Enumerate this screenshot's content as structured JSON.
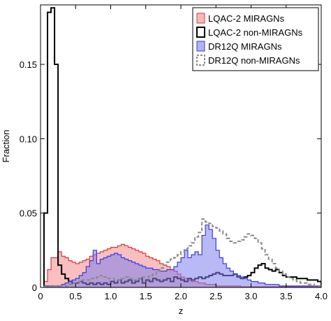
{
  "chart_data": {
    "type": "histogram-step",
    "title": "",
    "xlabel": "z",
    "ylabel": "Fraction",
    "xlim": [
      0,
      4.0
    ],
    "ylim": [
      0,
      0.19
    ],
    "xticks": [
      0,
      0.5,
      1.0,
      1.5,
      2.0,
      2.5,
      3.0,
      3.5,
      4.0
    ],
    "xtick_labels": [
      "0",
      "0.5",
      "1.0",
      "1.5",
      "2.0",
      "2.5",
      "3.0",
      "3.5",
      "4.0"
    ],
    "yticks": [
      0,
      0.05,
      0.1,
      0.15
    ],
    "ytick_labels": [
      "0",
      "0.05",
      "0.10",
      "0.15"
    ],
    "grid": false,
    "legend_position": "top-right",
    "bin_edges_start": 0.05,
    "bin_width": 0.05,
    "series": [
      {
        "name": "LQAC-2 MIRAGNs",
        "style": "filled",
        "fill_color": "#f08a8a",
        "edge_color": "#d83a3a",
        "values": [
          0.004,
          0.012,
          0.02,
          0.02,
          0.024,
          0.021,
          0.02,
          0.018,
          0.017,
          0.016,
          0.017,
          0.018,
          0.019,
          0.021,
          0.022,
          0.023,
          0.024,
          0.025,
          0.026,
          0.027,
          0.027,
          0.028,
          0.029,
          0.028,
          0.027,
          0.026,
          0.025,
          0.024,
          0.023,
          0.021,
          0.02,
          0.019,
          0.018,
          0.016,
          0.015,
          0.014,
          0.012,
          0.011,
          0.009,
          0.007,
          0.006,
          0.005,
          0.004,
          0.004,
          0.003,
          0.003,
          0.002,
          0.002,
          0.002,
          0.001,
          0.001,
          0.001,
          0.001,
          0.001,
          0.001,
          0.001,
          0.0005,
          0.0005,
          0.0005,
          0.0005,
          0.0005,
          0.0005,
          0.0005,
          0.0005,
          0.0005,
          0.0005,
          0.0005,
          0.0005,
          0.0005,
          0.0005,
          0.0005,
          0.0005,
          0.0005,
          0.0005,
          0.0005,
          0.0005,
          0.0005,
          0.0005,
          0.0005
        ]
      },
      {
        "name": "LQAC-2 non-MIRAGNs",
        "style": "step",
        "edge_color": "#000000",
        "dashed": false,
        "values": [
          0.05,
          0.185,
          0.188,
          0.15,
          0.015,
          0.009,
          0.006,
          0.004,
          0.003,
          0.003,
          0.004,
          0.003,
          0.002,
          0.003,
          0.002,
          0.003,
          0.002,
          0.003,
          0.002,
          0.004,
          0.003,
          0.005,
          0.003,
          0.004,
          0.005,
          0.003,
          0.004,
          0.006,
          0.003,
          0.005,
          0.004,
          0.006,
          0.005,
          0.004,
          0.005,
          0.006,
          0.004,
          0.007,
          0.006,
          0.005,
          0.004,
          0.006,
          0.005,
          0.006,
          0.007,
          0.006,
          0.007,
          0.008,
          0.009,
          0.01,
          0.009,
          0.008,
          0.008,
          0.008,
          0.009,
          0.007,
          0.006,
          0.007,
          0.008,
          0.01,
          0.013,
          0.015,
          0.016,
          0.013,
          0.012,
          0.011,
          0.012,
          0.01,
          0.008,
          0.007,
          0.007,
          0.007,
          0.006,
          0.006,
          0.006,
          0.005,
          0.005,
          0.005,
          0.004
        ]
      },
      {
        "name": "DR12Q MIRAGNs",
        "style": "filled",
        "fill_color": "#7f7fee",
        "edge_color": "#3b3be0",
        "values": [
          0.001,
          0.001,
          0.001,
          0.001,
          0.001,
          0.002,
          0.003,
          0.004,
          0.005,
          0.006,
          0.008,
          0.01,
          0.014,
          0.018,
          0.025,
          0.016,
          0.019,
          0.02,
          0.021,
          0.022,
          0.023,
          0.022,
          0.02,
          0.019,
          0.018,
          0.017,
          0.016,
          0.015,
          0.014,
          0.013,
          0.013,
          0.012,
          0.012,
          0.011,
          0.011,
          0.012,
          0.012,
          0.014,
          0.017,
          0.02,
          0.025,
          0.02,
          0.022,
          0.024,
          0.022,
          0.035,
          0.042,
          0.039,
          0.033,
          0.025,
          0.02,
          0.016,
          0.013,
          0.011,
          0.009,
          0.008,
          0.007,
          0.006,
          0.005,
          0.004,
          0.004,
          0.003,
          0.003,
          0.002,
          0.002,
          0.002,
          0.002,
          0.001,
          0.001,
          0.001,
          0.001,
          0.001,
          0.001,
          0.001,
          0.001,
          0.001,
          0.001,
          0.001,
          0.001
        ]
      },
      {
        "name": "DR12Q non-MIRAGNs",
        "style": "step",
        "edge_color": "#8a8a8a",
        "dashed": true,
        "values": [
          0.0005,
          0.0005,
          0.001,
          0.001,
          0.001,
          0.001,
          0.001,
          0.002,
          0.003,
          0.003,
          0.004,
          0.005,
          0.005,
          0.006,
          0.006,
          0.007,
          0.008,
          0.007,
          0.006,
          0.006,
          0.005,
          0.005,
          0.006,
          0.007,
          0.006,
          0.005,
          0.005,
          0.006,
          0.007,
          0.007,
          0.008,
          0.009,
          0.011,
          0.013,
          0.015,
          0.017,
          0.019,
          0.02,
          0.022,
          0.024,
          0.026,
          0.028,
          0.03,
          0.034,
          0.037,
          0.046,
          0.044,
          0.043,
          0.041,
          0.04,
          0.038,
          0.036,
          0.033,
          0.031,
          0.03,
          0.031,
          0.032,
          0.034,
          0.036,
          0.035,
          0.033,
          0.03,
          0.026,
          0.022,
          0.019,
          0.016,
          0.013,
          0.011,
          0.009,
          0.007,
          0.006,
          0.005,
          0.004,
          0.003,
          0.003,
          0.002,
          0.002,
          0.001,
          0.001
        ]
      }
    ]
  }
}
